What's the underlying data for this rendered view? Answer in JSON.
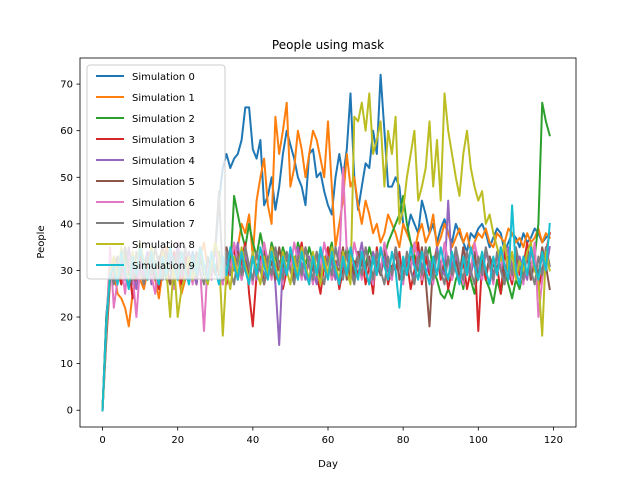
{
  "chart_data": {
    "type": "line",
    "title": "People using mask",
    "xlabel": "Day",
    "ylabel": "People",
    "xlim": [
      -6,
      126
    ],
    "ylim": [
      -3.6,
      75.6
    ],
    "xticks": [
      0,
      20,
      40,
      60,
      80,
      100,
      120
    ],
    "yticks": [
      0,
      10,
      20,
      30,
      40,
      50,
      60,
      70
    ],
    "grid": false,
    "legend_position": "top-left",
    "x": [
      0,
      1,
      2,
      3,
      4,
      5,
      6,
      7,
      8,
      9,
      10,
      11,
      12,
      13,
      14,
      15,
      16,
      17,
      18,
      19,
      20,
      21,
      22,
      23,
      24,
      25,
      26,
      27,
      28,
      29,
      30,
      31,
      32,
      33,
      34,
      35,
      36,
      37,
      38,
      39,
      40,
      41,
      42,
      43,
      44,
      45,
      46,
      47,
      48,
      49,
      50,
      51,
      52,
      53,
      54,
      55,
      56,
      57,
      58,
      59,
      60,
      61,
      62,
      63,
      64,
      65,
      66,
      67,
      68,
      69,
      70,
      71,
      72,
      73,
      74,
      75,
      76,
      77,
      78,
      79,
      80,
      81,
      82,
      83,
      84,
      85,
      86,
      87,
      88,
      89,
      90,
      91,
      92,
      93,
      94,
      95,
      96,
      97,
      98,
      99,
      100,
      101,
      102,
      103,
      104,
      105,
      106,
      107,
      108,
      109,
      110,
      111,
      112,
      113,
      114,
      115,
      116,
      117,
      118,
      119
    ],
    "series": [
      {
        "name": "Simulation 0",
        "color": "#1f77b4",
        "values": [
          0,
          20,
          30,
          28,
          33,
          31,
          35,
          29,
          33,
          30,
          36,
          31,
          34,
          30,
          32,
          29,
          33,
          31,
          35,
          30,
          31,
          29,
          32,
          30,
          34,
          31,
          33,
          29,
          32,
          30,
          34,
          45,
          52,
          55,
          52,
          54,
          55,
          58,
          65,
          65,
          56,
          54,
          58,
          44,
          46,
          50,
          43,
          48,
          55,
          60,
          57,
          54,
          50,
          48,
          44,
          55,
          56,
          50,
          51,
          47,
          44,
          42,
          50,
          55,
          50,
          56,
          68,
          50,
          43,
          48,
          53,
          52,
          60,
          55,
          72,
          60,
          48,
          48,
          50,
          48,
          40,
          38,
          42,
          40,
          38,
          45,
          42,
          38,
          40,
          36,
          39,
          41,
          38,
          36,
          40,
          38,
          36,
          34,
          38,
          37,
          39,
          40,
          38,
          35,
          37,
          39,
          38,
          34,
          36,
          38,
          37,
          35,
          38,
          36,
          37,
          39,
          38,
          36,
          37,
          38
        ]
      },
      {
        "name": "Simulation 1",
        "color": "#ff7f0e",
        "values": [
          0,
          18,
          28,
          30,
          25,
          24,
          22,
          18,
          25,
          30,
          28,
          26,
          30,
          33,
          28,
          24,
          30,
          35,
          32,
          27,
          30,
          25,
          28,
          33,
          30,
          28,
          33,
          36,
          30,
          32,
          35,
          33,
          30,
          28,
          32,
          30,
          35,
          40,
          38,
          42,
          33,
          45,
          50,
          54,
          44,
          40,
          63,
          55,
          60,
          66,
          48,
          52,
          60,
          56,
          50,
          55,
          60,
          58,
          54,
          50,
          62,
          48,
          35,
          40,
          45,
          55,
          48,
          50,
          44,
          40,
          45,
          42,
          38,
          40,
          36,
          38,
          42,
          40,
          38,
          35,
          40,
          38,
          36,
          34,
          38,
          40,
          36,
          38,
          42,
          35,
          37,
          40,
          38,
          35,
          37,
          39,
          36,
          38,
          34,
          36,
          38,
          37,
          39,
          36,
          35,
          38,
          37,
          36,
          39,
          38,
          36,
          37,
          35,
          38,
          36,
          37,
          39,
          36,
          38,
          37
        ]
      },
      {
        "name": "Simulation 2",
        "color": "#2ca02c",
        "values": [
          0,
          18,
          30,
          28,
          32,
          27,
          33,
          29,
          31,
          30,
          34,
          28,
          32,
          30,
          29,
          33,
          31,
          28,
          32,
          30,
          34,
          29,
          31,
          33,
          30,
          28,
          32,
          31,
          29,
          33,
          30,
          34,
          28,
          32,
          30,
          46,
          42,
          38,
          35,
          40,
          36,
          33,
          38,
          34,
          31,
          36,
          33,
          30,
          35,
          32,
          34,
          30,
          36,
          33,
          31,
          35,
          32,
          30,
          34,
          31,
          33,
          36,
          30,
          34,
          31,
          35,
          32,
          30,
          34,
          33,
          31,
          35,
          32,
          30,
          34,
          33,
          36,
          38,
          40,
          42,
          46,
          40,
          36,
          33,
          30,
          28,
          32,
          35,
          30,
          28,
          25,
          24,
          26,
          24,
          28,
          30,
          26,
          32,
          28,
          25,
          30,
          34,
          28,
          26,
          23,
          28,
          25,
          30,
          27,
          24,
          28,
          26,
          30,
          34,
          31,
          33,
          40,
          66,
          62,
          59
        ]
      },
      {
        "name": "Simulation 3",
        "color": "#d62728",
        "values": [
          0,
          15,
          28,
          33,
          30,
          27,
          35,
          31,
          24,
          29,
          33,
          27,
          31,
          35,
          29,
          26,
          32,
          30,
          28,
          34,
          31,
          27,
          33,
          29,
          31,
          27,
          35,
          30,
          28,
          32,
          36,
          29,
          33,
          27,
          31,
          35,
          28,
          32,
          36,
          25,
          18,
          29,
          33,
          27,
          31,
          35,
          28,
          32,
          26,
          30,
          34,
          28,
          32,
          36,
          30,
          27,
          33,
          29,
          25,
          31,
          35,
          28,
          32,
          26,
          30,
          34,
          28,
          32,
          29,
          33,
          27,
          31,
          25,
          35,
          29,
          33,
          27,
          31,
          30,
          34,
          28,
          32,
          26,
          30,
          36,
          27,
          33,
          29,
          31,
          35,
          28,
          32,
          26,
          30,
          34,
          28,
          32,
          26,
          30,
          34,
          17,
          32,
          28,
          33,
          29,
          31,
          25,
          34,
          30,
          27,
          33,
          29,
          31,
          36,
          28,
          32,
          26,
          30,
          34,
          38
        ]
      },
      {
        "name": "Simulation 4",
        "color": "#9467bd",
        "values": [
          0,
          18,
          32,
          27,
          31,
          33,
          28,
          35,
          30,
          26,
          32,
          29,
          34,
          27,
          31,
          28,
          35,
          30,
          33,
          29,
          36,
          31,
          28,
          34,
          30,
          27,
          33,
          31,
          29,
          32,
          35,
          30,
          27,
          33,
          29,
          31,
          36,
          28,
          33,
          30,
          34,
          28,
          32,
          29,
          31,
          35,
          27,
          14,
          32,
          29,
          33,
          28,
          35,
          31,
          28,
          33,
          30,
          27,
          34,
          31,
          29,
          32,
          28,
          35,
          31,
          30,
          33,
          28,
          32,
          36,
          30,
          27,
          34,
          31,
          29,
          33,
          30,
          28,
          35,
          31,
          29,
          33,
          30,
          28,
          34,
          31,
          29,
          32,
          28,
          35,
          31,
          29,
          45,
          30,
          33,
          28,
          35,
          31,
          29,
          33,
          30,
          28,
          34,
          31,
          29,
          33,
          30,
          28,
          35,
          31,
          29,
          33,
          30,
          28,
          34,
          31,
          29,
          33,
          30,
          35
        ]
      },
      {
        "name": "Simulation 5",
        "color": "#8c564b",
        "values": [
          0,
          20,
          28,
          31,
          33,
          29,
          35,
          32,
          27,
          30,
          34,
          31,
          29,
          33,
          28,
          32,
          35,
          30,
          27,
          33,
          30,
          34,
          31,
          28,
          32,
          29,
          35,
          31,
          30,
          33,
          29,
          32,
          28,
          35,
          31,
          30,
          34,
          28,
          32,
          29,
          33,
          31,
          30,
          34,
          29,
          32,
          28,
          35,
          31,
          30,
          33,
          28,
          32,
          29,
          35,
          31,
          30,
          34,
          28,
          32,
          29,
          33,
          31,
          30,
          35,
          28,
          32,
          29,
          34,
          31,
          30,
          33,
          28,
          32,
          29,
          35,
          31,
          30,
          34,
          28,
          32,
          29,
          33,
          31,
          30,
          35,
          28,
          18,
          32,
          34,
          31,
          30,
          33,
          28,
          32,
          29,
          35,
          31,
          30,
          34,
          28,
          32,
          29,
          33,
          31,
          30,
          35,
          28,
          32,
          29,
          34,
          31,
          30,
          33,
          28,
          32,
          29,
          35,
          31,
          26
        ]
      },
      {
        "name": "Simulation 6",
        "color": "#e377c2",
        "values": [
          0,
          17,
          35,
          22,
          28,
          31,
          25,
          33,
          29,
          20,
          31,
          27,
          33,
          29,
          25,
          32,
          28,
          34,
          30,
          26,
          33,
          29,
          35,
          31,
          27,
          34,
          30,
          17,
          32,
          28,
          35,
          31,
          27,
          34,
          30,
          36,
          32,
          28,
          35,
          31,
          27,
          34,
          30,
          36,
          32,
          28,
          35,
          31,
          27,
          34,
          30,
          36,
          32,
          28,
          35,
          31,
          27,
          34,
          30,
          36,
          32,
          28,
          35,
          31,
          52,
          34,
          30,
          36,
          32,
          28,
          35,
          31,
          27,
          34,
          30,
          36,
          32,
          28,
          35,
          31,
          27,
          34,
          30,
          36,
          32,
          28,
          35,
          31,
          27,
          34,
          30,
          36,
          32,
          28,
          35,
          31,
          27,
          34,
          30,
          36,
          32,
          28,
          35,
          31,
          27,
          34,
          30,
          36,
          32,
          28,
          35,
          31,
          27,
          34,
          30,
          36,
          20,
          28,
          35,
          31
        ]
      },
      {
        "name": "Simulation 7",
        "color": "#7f7f7f",
        "values": [
          0,
          16,
          30,
          27,
          33,
          29,
          35,
          31,
          28,
          34,
          30,
          27,
          33,
          29,
          35,
          31,
          28,
          34,
          30,
          27,
          33,
          29,
          35,
          31,
          28,
          34,
          30,
          27,
          33,
          29,
          35,
          47,
          28,
          34,
          30,
          27,
          33,
          29,
          35,
          31,
          28,
          34,
          30,
          27,
          33,
          29,
          35,
          31,
          28,
          34,
          30,
          27,
          33,
          29,
          35,
          31,
          28,
          34,
          30,
          27,
          33,
          29,
          35,
          31,
          28,
          34,
          30,
          27,
          33,
          29,
          35,
          31,
          28,
          34,
          30,
          27,
          33,
          29,
          35,
          31,
          28,
          34,
          30,
          27,
          33,
          29,
          35,
          31,
          28,
          34,
          30,
          27,
          33,
          29,
          35,
          31,
          28,
          34,
          30,
          27,
          33,
          29,
          35,
          31,
          28,
          34,
          30,
          27,
          33,
          29,
          35,
          31,
          28,
          34,
          30,
          27,
          33,
          29,
          35,
          31
        ]
      },
      {
        "name": "Simulation 8",
        "color": "#bcbd22",
        "values": [
          0,
          18,
          30,
          33,
          28,
          35,
          31,
          27,
          34,
          30,
          36,
          32,
          28,
          35,
          31,
          27,
          34,
          30,
          20,
          32,
          20,
          26,
          29,
          33,
          28,
          31,
          35,
          30,
          27,
          32,
          36,
          33,
          16,
          30,
          26,
          33,
          29,
          35,
          31,
          28,
          34,
          30,
          27,
          33,
          29,
          35,
          31,
          28,
          34,
          30,
          27,
          33,
          29,
          35,
          31,
          28,
          34,
          30,
          27,
          33,
          29,
          35,
          31,
          28,
          34,
          30,
          27,
          63,
          62,
          66,
          60,
          68,
          55,
          58,
          62,
          48,
          60,
          55,
          63,
          40,
          43,
          50,
          55,
          60,
          45,
          48,
          52,
          62,
          48,
          58,
          45,
          68,
          60,
          55,
          50,
          46,
          55,
          60,
          52,
          48,
          45,
          47,
          40,
          42,
          38,
          35,
          32,
          36,
          30,
          34,
          28,
          32,
          30,
          34,
          36,
          30,
          28,
          16,
          34,
          30
        ]
      },
      {
        "name": "Simulation 9",
        "color": "#17becf",
        "values": [
          0,
          19,
          29,
          31,
          27,
          34,
          30,
          26,
          33,
          29,
          35,
          31,
          28,
          34,
          30,
          27,
          33,
          29,
          35,
          31,
          28,
          34,
          30,
          27,
          33,
          29,
          35,
          31,
          28,
          34,
          30,
          27,
          33,
          29,
          35,
          31,
          28,
          34,
          30,
          27,
          33,
          29,
          35,
          31,
          28,
          34,
          30,
          27,
          33,
          29,
          35,
          31,
          28,
          34,
          30,
          27,
          33,
          29,
          35,
          31,
          28,
          34,
          30,
          27,
          33,
          29,
          35,
          31,
          28,
          34,
          30,
          27,
          33,
          29,
          35,
          31,
          28,
          34,
          30,
          22,
          33,
          29,
          35,
          31,
          28,
          34,
          30,
          27,
          33,
          29,
          35,
          31,
          28,
          34,
          30,
          27,
          33,
          29,
          35,
          31,
          28,
          34,
          30,
          27,
          33,
          29,
          35,
          31,
          28,
          44,
          30,
          27,
          33,
          29,
          35,
          31,
          28,
          34,
          30,
          40
        ]
      }
    ]
  }
}
